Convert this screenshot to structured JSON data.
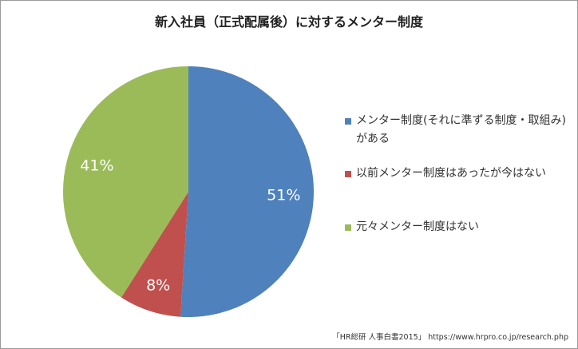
{
  "chart_data": {
    "type": "pie",
    "title": "新入社員（正式配属後）に対するメンター制度",
    "slices": [
      {
        "label": "メンター制度(それに準ずる制度・取組み)がある",
        "value": 51,
        "data_label": "51%",
        "color": "#4f81bd"
      },
      {
        "label": "以前メンター制度はあったが今はない",
        "value": 8,
        "data_label": "8%",
        "color": "#c0504d"
      },
      {
        "label": "元々メンター制度はない",
        "value": 41,
        "data_label": "41%",
        "color": "#9bbb59"
      }
    ],
    "start": "top",
    "direction": "clockwise",
    "legend_position": "right"
  },
  "source": "「HR総研 人事白書2015」 https://www.hrpro.co.jp/research.php"
}
